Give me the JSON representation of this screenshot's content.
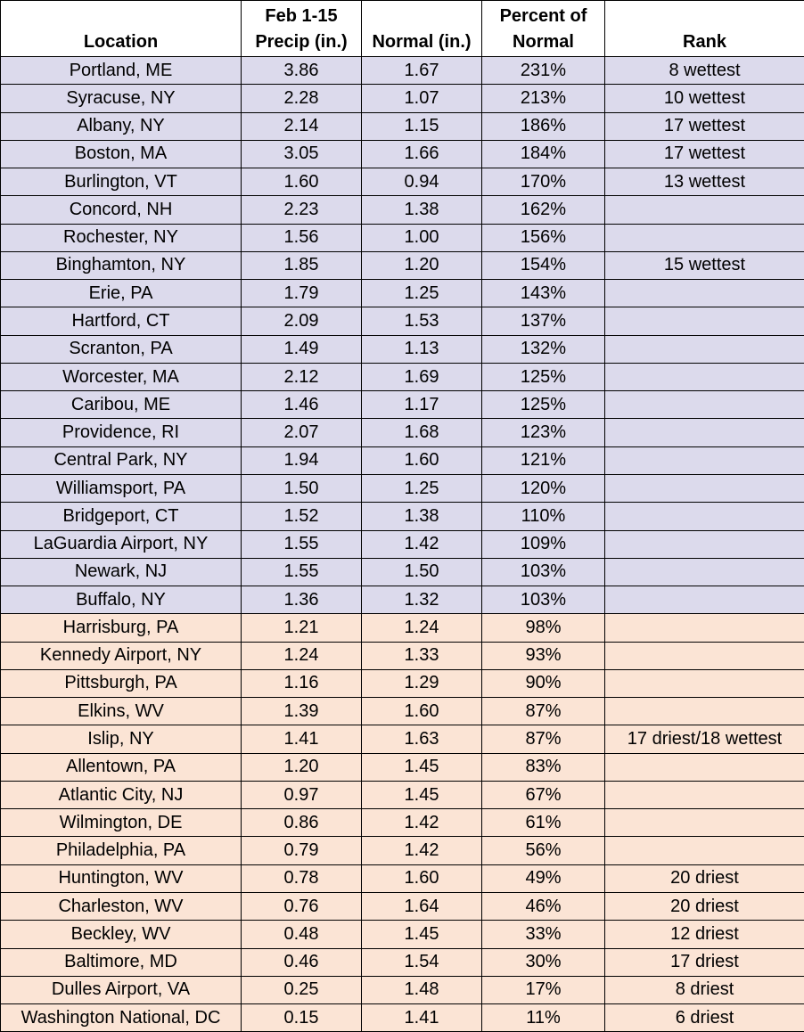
{
  "table": {
    "header": [
      "Location",
      "Feb 1-15\nPrecip (in.)",
      "Normal (in.)",
      "Percent of\nNormal",
      "Rank"
    ],
    "row_groups": [
      {
        "color": "#dcdaec",
        "rows": [
          [
            "Portland, ME",
            "3.86",
            "1.67",
            "231%",
            "8 wettest"
          ],
          [
            "Syracuse, NY",
            "2.28",
            "1.07",
            "213%",
            "10 wettest"
          ],
          [
            "Albany, NY",
            "2.14",
            "1.15",
            "186%",
            "17 wettest"
          ],
          [
            "Boston, MA",
            "3.05",
            "1.66",
            "184%",
            "17 wettest"
          ],
          [
            "Burlington, VT",
            "1.60",
            "0.94",
            "170%",
            "13 wettest"
          ],
          [
            "Concord, NH",
            "2.23",
            "1.38",
            "162%",
            null
          ],
          [
            "Rochester, NY",
            "1.56",
            "1.00",
            "156%",
            null
          ],
          [
            "Binghamton, NY",
            "1.85",
            "1.20",
            "154%",
            "15 wettest"
          ],
          [
            "Erie, PA",
            "1.79",
            "1.25",
            "143%",
            null
          ],
          [
            "Hartford, CT",
            "2.09",
            "1.53",
            "137%",
            null
          ],
          [
            "Scranton, PA",
            "1.49",
            "1.13",
            "132%",
            null
          ],
          [
            "Worcester, MA",
            "2.12",
            "1.69",
            "125%",
            null
          ],
          [
            "Caribou, ME",
            "1.46",
            "1.17",
            "125%",
            null
          ],
          [
            "Providence, RI",
            "2.07",
            "1.68",
            "123%",
            null
          ],
          [
            "Central Park, NY",
            "1.94",
            "1.60",
            "121%",
            null
          ],
          [
            "Williamsport, PA",
            "1.50",
            "1.25",
            "120%",
            null
          ],
          [
            "Bridgeport, CT",
            "1.52",
            "1.38",
            "110%",
            null
          ],
          [
            "LaGuardia Airport, NY",
            "1.55",
            "1.42",
            "109%",
            null
          ],
          [
            "Newark, NJ",
            "1.55",
            "1.50",
            "103%",
            null
          ],
          [
            "Buffalo, NY",
            "1.36",
            "1.32",
            "103%",
            null
          ]
        ]
      },
      {
        "color": "#fbe4d5",
        "rows": [
          [
            "Harrisburg, PA",
            "1.21",
            "1.24",
            "98%",
            null
          ],
          [
            "Kennedy Airport, NY",
            "1.24",
            "1.33",
            "93%",
            null
          ],
          [
            "Pittsburgh, PA",
            "1.16",
            "1.29",
            "90%",
            null
          ],
          [
            "Elkins, WV",
            "1.39",
            "1.60",
            "87%",
            null
          ],
          [
            "Islip, NY",
            "1.41",
            "1.63",
            "87%",
            "17 driest/18 wettest"
          ],
          [
            "Allentown, PA",
            "1.20",
            "1.45",
            "83%",
            null
          ],
          [
            "Atlantic City, NJ",
            "0.97",
            "1.45",
            "67%",
            null
          ],
          [
            "Wilmington, DE",
            "0.86",
            "1.42",
            "61%",
            null
          ],
          [
            "Philadelphia, PA",
            "0.79",
            "1.42",
            "56%",
            null
          ],
          [
            "Huntington, WV",
            "0.78",
            "1.60",
            "49%",
            "20 driest"
          ],
          [
            "Charleston, WV",
            "0.76",
            "1.64",
            "46%",
            "20 driest"
          ],
          [
            "Beckley, WV",
            "0.48",
            "1.45",
            "33%",
            "12 driest"
          ],
          [
            "Baltimore, MD",
            "0.46",
            "1.54",
            "30%",
            "17 driest"
          ],
          [
            "Dulles Airport, VA",
            "0.25",
            "1.48",
            "17%",
            "8 driest"
          ],
          [
            "Washington National, DC",
            "0.15",
            "1.41",
            "11%",
            "6 driest"
          ]
        ]
      }
    ]
  }
}
